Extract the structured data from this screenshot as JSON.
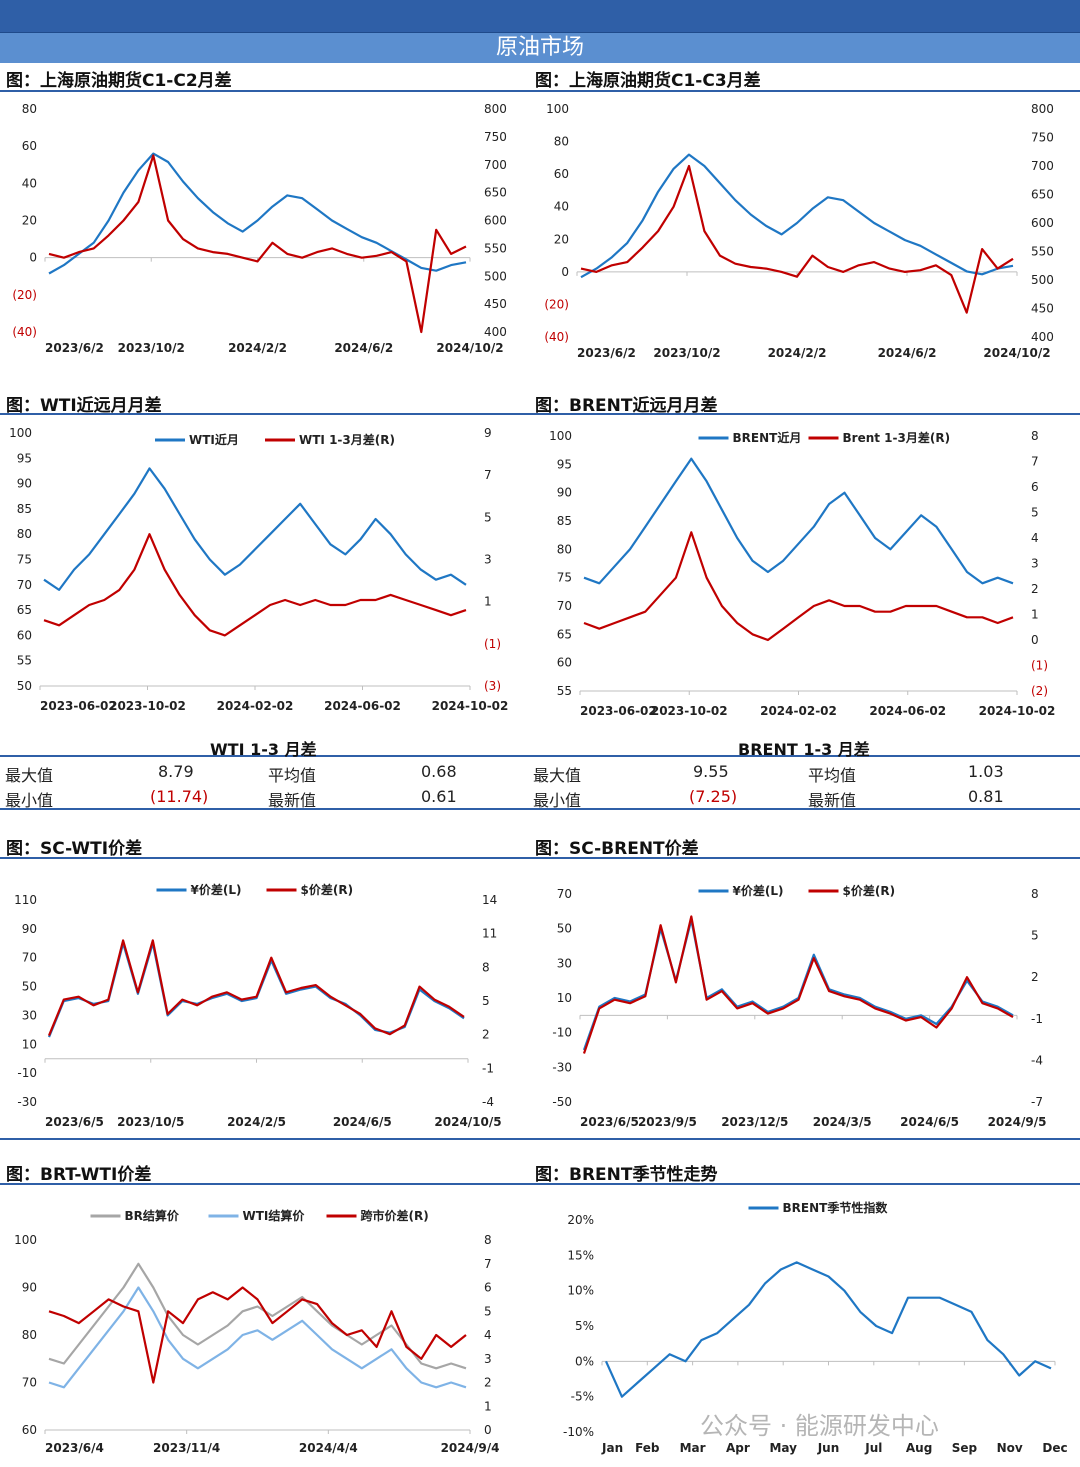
{
  "banner": "原油市场",
  "headers": {
    "c1c2": "图：上海原油期货C1-C2月差",
    "c1c3": "图：上海原油期货C1-C3月差",
    "wti": "图：WTI近远月月差",
    "brent": "图：BRENT近远月月差",
    "scwti": "图：SC-WTI价差",
    "scbrent": "图：SC-BRENT价差",
    "brtwti": "图：BRT-WTI价差",
    "season": "图：BRENT季节性走势"
  },
  "stats": {
    "wti": {
      "title": "WTI 1-3 月差",
      "max_label": "最大值",
      "max": "8.79",
      "avg_label": "平均值",
      "avg": "0.68",
      "min_label": "最小值",
      "min": "(11.74)",
      "last_label": "最新值",
      "last": "0.61"
    },
    "brent": {
      "title": "BRENT 1-3 月差",
      "max_label": "最大值",
      "max": "9.55",
      "avg_label": "平均值",
      "avg": "1.03",
      "min_label": "最小值",
      "min": "(7.25)",
      "last_label": "最新值",
      "last": "0.81"
    }
  },
  "watermark": "公众号 · 能源研发中心",
  "colors": {
    "blue": "#1f77c4",
    "red": "#c00000",
    "gray": "#a6a6a6",
    "lightblue": "#7fb3e6",
    "header_rule": "#2f5fa7"
  },
  "chart_data": [
    {
      "id": "c1c2",
      "type": "line",
      "title": "",
      "x_ticks": [
        "2023/6/2",
        "2023/10/2",
        "2024/2/2",
        "2024/6/2",
        "2024/10/2"
      ],
      "y_left_ticks": [
        "80",
        "60",
        "40",
        "20",
        "0",
        "(20)",
        "(40)"
      ],
      "y_right_ticks": [
        "800",
        "750",
        "700",
        "650",
        "600",
        "550",
        "500",
        "450",
        "400"
      ],
      "ylim_left": [
        -40,
        80
      ],
      "ylim_right": [
        400,
        800
      ],
      "series": [
        {
          "axis": "right",
          "color": "#1f77c4",
          "values": [
            505,
            520,
            540,
            560,
            600,
            650,
            690,
            720,
            705,
            670,
            640,
            615,
            595,
            580,
            600,
            625,
            645,
            640,
            620,
            600,
            585,
            570,
            560,
            545,
            530,
            515,
            510,
            520,
            525
          ]
        },
        {
          "axis": "left",
          "color": "#c00000",
          "values": [
            2,
            0,
            3,
            5,
            12,
            20,
            30,
            55,
            20,
            10,
            5,
            3,
            2,
            0,
            -2,
            8,
            2,
            0,
            3,
            5,
            2,
            0,
            1,
            3,
            -2,
            -40,
            15,
            2,
            6
          ]
        }
      ]
    },
    {
      "id": "c1c3",
      "type": "line",
      "title": "",
      "x_ticks": [
        "2023/6/2",
        "2023/10/2",
        "2024/2/2",
        "2024/6/2",
        "2024/10/2"
      ],
      "y_left_ticks": [
        "100",
        "80",
        "60",
        "40",
        "20",
        "0",
        "(20)",
        "(40)"
      ],
      "y_right_ticks": [
        "800",
        "750",
        "700",
        "650",
        "600",
        "550",
        "500",
        "450",
        "400"
      ],
      "ylim_left": [
        -40,
        100
      ],
      "ylim_right": [
        400,
        800
      ],
      "series": [
        {
          "axis": "right",
          "color": "#1f77c4",
          "values": [
            505,
            520,
            540,
            565,
            605,
            655,
            695,
            720,
            700,
            670,
            640,
            615,
            595,
            580,
            600,
            625,
            645,
            640,
            620,
            600,
            585,
            570,
            560,
            545,
            530,
            515,
            510,
            520,
            525
          ]
        },
        {
          "axis": "left",
          "color": "#c00000",
          "values": [
            2,
            0,
            4,
            6,
            15,
            25,
            40,
            65,
            25,
            10,
            5,
            3,
            2,
            0,
            -3,
            10,
            3,
            0,
            4,
            6,
            2,
            0,
            1,
            4,
            -2,
            -25,
            14,
            2,
            8
          ]
        }
      ]
    },
    {
      "id": "wti",
      "type": "line",
      "title": "",
      "legend": [
        "WTI近月",
        "WTI 1-3月差(R)"
      ],
      "x_ticks": [
        "2023-06-02",
        "2023-10-02",
        "2024-02-02",
        "2024-06-02",
        "2024-10-02"
      ],
      "y_left_ticks": [
        "100",
        "95",
        "90",
        "85",
        "80",
        "75",
        "70",
        "65",
        "60",
        "55",
        "50"
      ],
      "y_right_ticks": [
        "9",
        "7",
        "5",
        "3",
        "1",
        "(1)",
        "(3)"
      ],
      "ylim_left": [
        50,
        100
      ],
      "ylim_right": [
        -3,
        9
      ],
      "series": [
        {
          "axis": "left",
          "color": "#1f77c4",
          "values": [
            71,
            69,
            73,
            76,
            80,
            84,
            88,
            93,
            89,
            84,
            79,
            75,
            72,
            74,
            77,
            80,
            83,
            86,
            82,
            78,
            76,
            79,
            83,
            80,
            76,
            73,
            71,
            72,
            70
          ]
        },
        {
          "axis": "left",
          "color": "#c00000",
          "values": [
            63,
            62,
            64,
            66,
            67,
            69,
            73,
            80,
            73,
            68,
            64,
            61,
            60,
            62,
            64,
            66,
            67,
            66,
            67,
            66,
            66,
            67,
            67,
            68,
            67,
            66,
            65,
            64,
            65
          ]
        }
      ]
    },
    {
      "id": "brent",
      "type": "line",
      "title": "",
      "legend": [
        "BRENT近月",
        "Brent 1-3月差(R)"
      ],
      "x_ticks": [
        "2023-06-02",
        "2023-10-02",
        "2024-02-02",
        "2024-06-02",
        "2024-10-02"
      ],
      "y_left_ticks": [
        "100",
        "95",
        "90",
        "85",
        "80",
        "75",
        "70",
        "65",
        "60",
        "55"
      ],
      "y_right_ticks": [
        "8",
        "7",
        "6",
        "5",
        "4",
        "3",
        "2",
        "1",
        "0",
        "(1)",
        "(2)"
      ],
      "ylim_left": [
        55,
        100
      ],
      "ylim_right": [
        -2,
        8
      ],
      "series": [
        {
          "axis": "left",
          "color": "#1f77c4",
          "values": [
            75,
            74,
            77,
            80,
            84,
            88,
            92,
            96,
            92,
            87,
            82,
            78,
            76,
            78,
            81,
            84,
            88,
            90,
            86,
            82,
            80,
            83,
            86,
            84,
            80,
            76,
            74,
            75,
            74
          ]
        },
        {
          "axis": "left",
          "color": "#c00000",
          "values": [
            67,
            66,
            67,
            68,
            69,
            72,
            75,
            83,
            75,
            70,
            67,
            65,
            64,
            66,
            68,
            70,
            71,
            70,
            70,
            69,
            69,
            70,
            70,
            70,
            69,
            68,
            68,
            67,
            68
          ]
        }
      ]
    },
    {
      "id": "scwti",
      "type": "line",
      "title": "",
      "legend": [
        "¥价差(L)",
        "$价差(R)"
      ],
      "x_ticks": [
        "2023/6/5",
        "2023/10/5",
        "2024/2/5",
        "2024/6/5",
        "2024/10/5"
      ],
      "y_left_ticks": [
        "110",
        "90",
        "70",
        "50",
        "30",
        "10",
        "-10",
        "-30"
      ],
      "y_right_ticks": [
        "14",
        "11",
        "8",
        "5",
        "2",
        "-1",
        "-4"
      ],
      "ylim_left": [
        -30,
        110
      ],
      "ylim_right": [
        -4,
        14
      ],
      "series": [
        {
          "axis": "left",
          "color": "#1f77c4",
          "values": [
            15,
            40,
            42,
            38,
            40,
            80,
            45,
            80,
            30,
            40,
            38,
            42,
            45,
            40,
            42,
            68,
            45,
            48,
            50,
            42,
            38,
            30,
            20,
            18,
            22,
            48,
            40,
            35,
            28
          ]
        },
        {
          "axis": "left",
          "color": "#c00000",
          "values": [
            16,
            41,
            43,
            37,
            41,
            82,
            46,
            82,
            31,
            41,
            37,
            43,
            46,
            41,
            43,
            70,
            46,
            49,
            51,
            43,
            37,
            31,
            21,
            17,
            23,
            50,
            41,
            36,
            29
          ]
        }
      ]
    },
    {
      "id": "scbrent",
      "type": "line",
      "title": "",
      "legend": [
        "¥价差(L)",
        "$价差(R)"
      ],
      "x_ticks": [
        "2023/6/5",
        "2023/9/5",
        "2023/12/5",
        "2024/3/5",
        "2024/6/5",
        "2024/9/5"
      ],
      "y_left_ticks": [
        "70",
        "50",
        "30",
        "10",
        "-10",
        "-30",
        "-50"
      ],
      "y_right_ticks": [
        "8",
        "5",
        "2",
        "-1",
        "-4",
        "-7"
      ],
      "ylim_left": [
        -50,
        70
      ],
      "ylim_right": [
        -7,
        8
      ],
      "series": [
        {
          "axis": "left",
          "color": "#1f77c4",
          "values": [
            -20,
            5,
            10,
            8,
            12,
            50,
            20,
            55,
            10,
            15,
            5,
            8,
            2,
            5,
            10,
            35,
            15,
            12,
            10,
            5,
            2,
            -2,
            0,
            -5,
            5,
            20,
            8,
            5,
            0
          ]
        },
        {
          "axis": "left",
          "color": "#c00000",
          "values": [
            -22,
            4,
            9,
            7,
            11,
            52,
            19,
            57,
            9,
            14,
            4,
            7,
            1,
            4,
            9,
            33,
            14,
            11,
            9,
            4,
            1,
            -3,
            -1,
            -7,
            4,
            22,
            7,
            4,
            -1
          ]
        }
      ]
    },
    {
      "id": "brtwti",
      "type": "line",
      "title": "",
      "legend": [
        "BR结算价",
        "WTI结算价",
        "跨市价差(R)"
      ],
      "x_ticks": [
        "2023/6/4",
        "2023/11/4",
        "2024/4/4",
        "2024/9/4"
      ],
      "y_left_ticks": [
        "100",
        "90",
        "80",
        "70",
        "60"
      ],
      "y_right_ticks": [
        "8",
        "7",
        "6",
        "5",
        "4",
        "3",
        "2",
        "1",
        "0"
      ],
      "ylim_left": [
        60,
        100
      ],
      "ylim_right": [
        0,
        8
      ],
      "series": [
        {
          "axis": "left",
          "color": "#a6a6a6",
          "values": [
            75,
            74,
            78,
            82,
            86,
            90,
            95,
            90,
            84,
            80,
            78,
            80,
            82,
            85,
            86,
            84,
            86,
            88,
            85,
            82,
            80,
            78,
            80,
            82,
            78,
            74,
            73,
            74,
            73
          ]
        },
        {
          "axis": "left",
          "color": "#7fb3e6",
          "values": [
            70,
            69,
            73,
            77,
            81,
            85,
            90,
            85,
            79,
            75,
            73,
            75,
            77,
            80,
            81,
            79,
            81,
            83,
            80,
            77,
            75,
            73,
            75,
            77,
            73,
            70,
            69,
            70,
            69
          ]
        },
        {
          "axis": "right",
          "color": "#c00000",
          "values": [
            5,
            4.8,
            4.5,
            5,
            5.5,
            5.2,
            5,
            2,
            5,
            4.5,
            5.5,
            5.8,
            5.5,
            6,
            5.5,
            4.5,
            5,
            5.5,
            5.3,
            4.5,
            4,
            4.2,
            3.5,
            5,
            3.5,
            3,
            4,
            3.5,
            4
          ]
        }
      ]
    },
    {
      "id": "season",
      "type": "line",
      "title": "",
      "legend": [
        "BRENT季节性指数"
      ],
      "x_ticks": [
        "Jan",
        "Feb",
        "Mar",
        "Apr",
        "May",
        "Jun",
        "Jul",
        "Aug",
        "Sep",
        "Nov",
        "Dec"
      ],
      "y_left_ticks": [
        "20%",
        "15%",
        "10%",
        "5%",
        "0%",
        "-5%",
        "-10%"
      ],
      "ylim_left": [
        -10,
        20
      ],
      "series": [
        {
          "axis": "left",
          "color": "#1f77c4",
          "values": [
            0,
            -5,
            -3,
            -1,
            1,
            0,
            3,
            4,
            6,
            8,
            11,
            13,
            14,
            13,
            12,
            10,
            7,
            5,
            4,
            9,
            9,
            9,
            8,
            7,
            3,
            1,
            -2,
            0,
            -1
          ]
        }
      ]
    }
  ]
}
